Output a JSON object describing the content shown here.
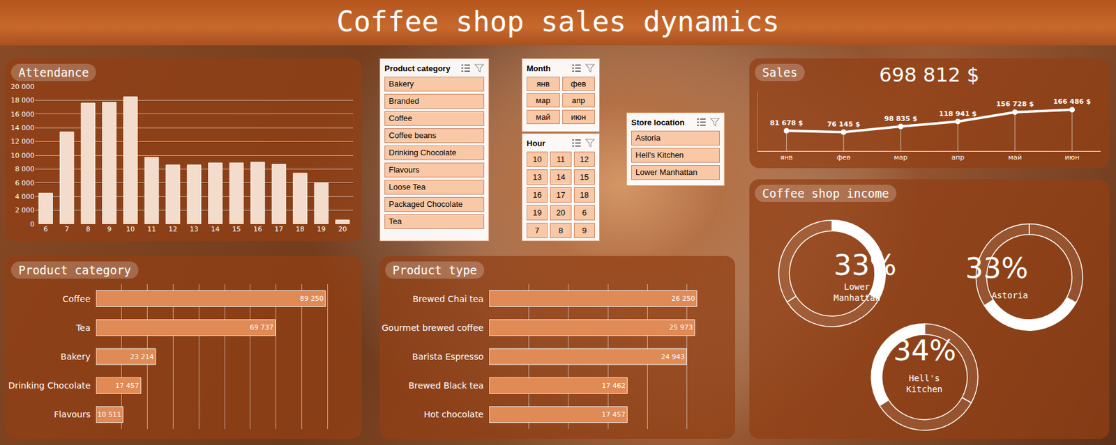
{
  "title": "Coffee shop sales dynamics",
  "chart_data": [
    {
      "type": "bar",
      "title": "Attendance",
      "categories": [
        "6",
        "7",
        "8",
        "9",
        "10",
        "11",
        "12",
        "13",
        "14",
        "15",
        "16",
        "17",
        "18",
        "19",
        "20"
      ],
      "values": [
        4500,
        13400,
        17600,
        17700,
        18500,
        9700,
        8600,
        8600,
        8900,
        8900,
        9000,
        8700,
        7400,
        6000,
        600
      ],
      "color": "#f3dccb",
      "ylim": [
        0,
        20000
      ],
      "yticks": [
        0,
        {
          "value": 2000,
          "label": "2 000"
        },
        {
          "value": 4000,
          "label": "4 000"
        },
        {
          "value": 6000,
          "label": "6 000"
        },
        {
          "value": 8000,
          "label": "8 000"
        },
        {
          "value": 10000,
          "label": "10 000"
        },
        {
          "value": 12000,
          "label": "12 000"
        },
        {
          "value": 14000,
          "label": "14 000"
        },
        {
          "value": 16000,
          "label": "16 000"
        },
        {
          "value": 18000,
          "label": "18 000"
        },
        {
          "value": 20000,
          "label": "20 000"
        }
      ],
      "grid": true
    },
    {
      "type": "bar",
      "title": "Product category",
      "orientation": "horizontal",
      "categories": [
        "Coffee",
        "Tea",
        "Bakery",
        "Drinking Chocolate",
        "Flavours"
      ],
      "values": [
        89250,
        69737,
        23214,
        17457,
        10511
      ],
      "value_labels": [
        "89 250",
        "69 737",
        "23 214",
        "17 457",
        "10 511"
      ],
      "data_labels": true,
      "color": "#e08a55",
      "xlim": [
        0,
        100000
      ],
      "xticks": [
        0,
        10000,
        20000,
        30000,
        40000,
        50000,
        60000,
        70000,
        80000,
        90000,
        100000
      ],
      "grid": true,
      "tick_labels": "y"
    },
    {
      "type": "bar",
      "title": "Product type",
      "orientation": "horizontal",
      "categories": [
        "Brewed Chai tea",
        "Gourmet brewed coffee",
        "Barista Espresso",
        "Brewed Black tea",
        "Hot chocolate"
      ],
      "values": [
        26250,
        25973,
        24943,
        17462,
        17457
      ],
      "value_labels": [
        "26 250",
        "25 973",
        "24 943",
        "17 462",
        "17 457"
      ],
      "data_labels": true,
      "color": "#e08a55",
      "xlim": [
        0,
        30000
      ],
      "xticks": [
        0,
        5000,
        10000,
        15000,
        20000,
        25000,
        30000
      ],
      "grid": true,
      "tick_labels": "y"
    },
    {
      "type": "line",
      "title": "Sales",
      "subtitle": "698 812 $",
      "categories": [
        "янв",
        "фев",
        "мар",
        "апр",
        "май",
        "июн"
      ],
      "values": [
        81678,
        76145,
        98835,
        118941,
        156728,
        166486
      ],
      "value_labels": [
        "81 678 $",
        "76 145 $",
        "98 835 $",
        "118 941 $",
        "156 728 $",
        "166 486 $"
      ],
      "data_labels": true,
      "color": "#ffffff",
      "marker": "circle",
      "ylim": [
        0,
        240000
      ],
      "yticks": [],
      "grid": false,
      "tick_labels": "x"
    },
    {
      "type": "pie",
      "title": "Coffee shop income",
      "categories": [
        "Lower Manhattan",
        "Astoria",
        "Hell's Kitchen"
      ],
      "values": [
        33,
        33,
        34
      ],
      "value_labels": [
        "33%",
        "33%",
        "34%"
      ],
      "data_labels": true,
      "color": "#ffffff"
    }
  ],
  "slicers": [
    {
      "title": "Product category",
      "items": [
        "Bakery",
        "Branded",
        "Coffee",
        "Coffee beans",
        "Drinking Chocolate",
        "Flavours",
        "Loose Tea",
        "Packaged Chocolate",
        "Tea"
      ]
    },
    {
      "title": "Month",
      "items": [
        "янв",
        "фев",
        "мар",
        "апр",
        "май",
        "июн"
      ]
    },
    {
      "title": "Hour",
      "items": [
        "10",
        "11",
        "12",
        "13",
        "14",
        "15",
        "16",
        "17",
        "18",
        "19",
        "20",
        "6",
        "7",
        "8",
        "9"
      ]
    },
    {
      "title": "Store location",
      "items": [
        "Astoria",
        "Hell's Kitchen",
        "Lower Manhattan"
      ]
    }
  ]
}
